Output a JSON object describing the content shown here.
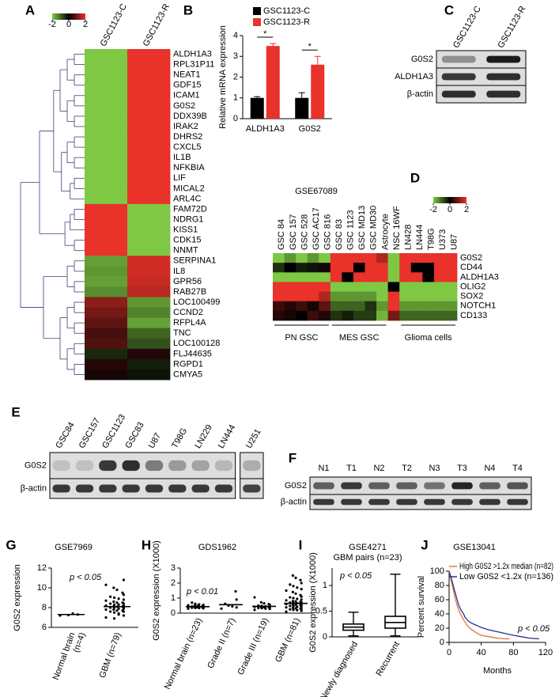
{
  "chart_data": [
    {
      "type": "heatmap",
      "panel_label": "A",
      "columns": [
        "GSC1123-C",
        "GSC1123-R"
      ],
      "rows": [
        "ALDH1A3",
        "RPL31P11",
        "NEAT1",
        "GDF15",
        "ICAM1",
        "G0S2",
        "DDX39B",
        "IRAK2",
        "DHRS2",
        "CXCL5",
        "IL1B",
        "NFKBIA",
        "LIF",
        "MICAL2",
        "ARL4C",
        "FAM72D",
        "NDRG1",
        "KISS1",
        "CDK15",
        "NNMT",
        "SERPINA1",
        "IL8",
        "GPR56",
        "RAB27B",
        "LOC100499",
        "CCND2",
        "RFPL4A",
        "TNC",
        "LOC100128",
        "FLJ44635",
        "RGPD1",
        "CMYA5"
      ],
      "values": [
        [
          -2,
          2
        ],
        [
          -2,
          2
        ],
        [
          -2,
          2
        ],
        [
          -2,
          2
        ],
        [
          -2,
          2
        ],
        [
          -2,
          2
        ],
        [
          -2,
          2
        ],
        [
          -2,
          2
        ],
        [
          -2,
          2
        ],
        [
          -2,
          2
        ],
        [
          -2,
          2
        ],
        [
          -2,
          2
        ],
        [
          -2,
          2
        ],
        [
          -2,
          2
        ],
        [
          -2,
          2
        ],
        [
          2,
          -2
        ],
        [
          2,
          -2
        ],
        [
          2,
          -2
        ],
        [
          2,
          -2
        ],
        [
          2,
          -2
        ],
        [
          -1.6,
          1.8
        ],
        [
          -1.5,
          1.8
        ],
        [
          -1.6,
          1.7
        ],
        [
          -1.4,
          1.6
        ],
        [
          1.2,
          -1.5
        ],
        [
          1.0,
          -1.3
        ],
        [
          0.8,
          -1.6
        ],
        [
          0.6,
          -1.0
        ],
        [
          0.7,
          -0.8
        ],
        [
          -0.4,
          0.3
        ],
        [
          0.3,
          -0.3
        ],
        [
          0.2,
          -0.2
        ]
      ],
      "vlim": [
        -2,
        2
      ],
      "colorbar_ticks": [
        -2,
        0,
        2
      ],
      "colors": [
        "#7ec843",
        "#000000",
        "#e8322a"
      ],
      "highlight_row": 5,
      "highlight_color": "#e8322a"
    },
    {
      "type": "bar",
      "panel_label": "B",
      "ylabel": "Relative mRNA expression",
      "categories": [
        "ALDH1A3",
        "G0S2"
      ],
      "series": [
        {
          "name": "GSC1123-C",
          "color": "#000000",
          "values": [
            1.0,
            1.0
          ],
          "errors": [
            0.06,
            0.25
          ]
        },
        {
          "name": "GSC1123-R",
          "color": "#e8322a",
          "values": [
            3.5,
            2.6
          ],
          "errors": [
            0.12,
            0.4
          ]
        }
      ],
      "significance": [
        "*",
        "*"
      ],
      "ylim": [
        0,
        4
      ],
      "yticks": [
        0,
        1,
        2,
        3,
        4
      ]
    },
    {
      "type": "blot",
      "panel_label": "C",
      "lanes": [
        "GSC1123-C",
        "GSC1123-R"
      ],
      "rows": [
        {
          "name": "G0S2",
          "intensities": [
            0.35,
            0.95
          ]
        },
        {
          "name": "ALDH1A3",
          "intensities": [
            0.8,
            0.85
          ]
        },
        {
          "name": "β-actin",
          "intensities": [
            0.85,
            0.85
          ]
        }
      ]
    },
    {
      "type": "heatmap",
      "panel_label": "D",
      "title": "GSE67089",
      "columns": [
        "GSC 84",
        "GSC 157",
        "GSC 528",
        "GSC AC17",
        "GSC 816",
        "GSC 83",
        "GSC 1123",
        "GSC MD13",
        "GSC MD30",
        "Astrocyte",
        "NSC 16WF",
        "LN428",
        "LN444",
        "T98G",
        "U373",
        "U87"
      ],
      "rows": [
        "G0S2",
        "CD44",
        "ALDH1A3",
        "OLIG2",
        "SOX2",
        "NOTCH1",
        "CD133"
      ],
      "values": [
        [
          -2,
          -1.5,
          -2,
          -1.5,
          -2,
          2,
          2,
          2,
          2,
          1.5,
          -2,
          2,
          2,
          2,
          2,
          2
        ],
        [
          -0.5,
          0,
          -0.3,
          -0.2,
          0.2,
          2,
          2,
          0,
          2,
          2,
          -2,
          2,
          0,
          0,
          2,
          2
        ],
        [
          -2,
          -2,
          -2,
          -2,
          -2,
          2,
          0,
          2,
          2,
          2,
          -2,
          2,
          2,
          0,
          2,
          2
        ],
        [
          2,
          2,
          2,
          2,
          2,
          -2,
          -2,
          -2,
          -2,
          -2,
          0,
          -2,
          -2,
          -2,
          -2,
          -2
        ],
        [
          2,
          2,
          2,
          2,
          1.5,
          -1.5,
          -1.5,
          -1.5,
          -1.5,
          -2,
          2,
          -2,
          -2,
          -2,
          -2,
          -2
        ],
        [
          0.5,
          0.3,
          0.5,
          0.2,
          0.8,
          -1,
          -1,
          -1,
          -0.5,
          -1.5,
          2,
          -1.5,
          -1.5,
          -1.5,
          -1.5,
          -1.5
        ],
        [
          0.3,
          0.2,
          0,
          0.5,
          0.3,
          -0.5,
          -0.3,
          -0.6,
          -0.6,
          -1.8,
          1,
          -1,
          -1,
          -1,
          -1,
          -1
        ]
      ],
      "vlim": [
        -2,
        2
      ],
      "colorbar_ticks": [
        -2,
        0,
        2
      ],
      "colors": [
        "#7ec843",
        "#000000",
        "#e8322a"
      ],
      "groups": [
        {
          "label": "PN GSC",
          "from": 0,
          "to": 4
        },
        {
          "label": "MES GSC",
          "from": 5,
          "to": 9
        },
        {
          "label": "Glioma cells",
          "from": 11,
          "to": 15
        }
      ]
    },
    {
      "type": "blot",
      "panel_label": "E",
      "lanes": [
        "GSC84",
        "GSC157",
        "GSC1123",
        "GSC83",
        "U87",
        "T98G",
        "LN229",
        "LN444",
        "U251"
      ],
      "gap_before": 8,
      "rows": [
        {
          "name": "G0S2",
          "intensities": [
            0.1,
            0.1,
            0.8,
            0.85,
            0.45,
            0.3,
            0.25,
            0.15,
            0.2
          ]
        },
        {
          "name": "β-actin",
          "intensities": [
            0.8,
            0.8,
            0.8,
            0.8,
            0.8,
            0.8,
            0.8,
            0.8,
            0.75
          ]
        }
      ]
    },
    {
      "type": "blot",
      "panel_label": "F",
      "lanes": [
        "N1",
        "T1",
        "N2",
        "T2",
        "N3",
        "T3",
        "N4",
        "T4"
      ],
      "rows": [
        {
          "name": "G0S2",
          "intensities": [
            0.6,
            0.8,
            0.6,
            0.6,
            0.5,
            0.9,
            0.6,
            0.65
          ]
        },
        {
          "name": "β-actin",
          "intensities": [
            0.8,
            0.8,
            0.8,
            0.8,
            0.8,
            0.8,
            0.8,
            0.8
          ]
        }
      ]
    },
    {
      "type": "strip",
      "panel_label": "G",
      "title": "GSE7969",
      "p_text": "p < 0.05",
      "ylabel": "G0S2 expression",
      "groups": [
        {
          "label": [
            "Normal brain",
            "(n=4)"
          ],
          "values": [
            7.2,
            7.3,
            7.4,
            7.25
          ],
          "mean": 7.3
        },
        {
          "label": [
            "GBM (n=79)"
          ],
          "values": [
            7.0,
            7.2,
            7.4,
            7.5,
            7.6,
            7.6,
            7.7,
            7.7,
            7.8,
            7.8,
            7.9,
            7.9,
            8.0,
            8.0,
            8.0,
            8.1,
            8.1,
            8.1,
            8.2,
            8.2,
            8.3,
            8.3,
            8.4,
            8.4,
            8.5,
            8.5,
            8.6,
            8.7,
            8.8,
            8.9,
            9.0,
            9.1,
            9.3,
            9.5,
            9.8,
            10.0,
            10.3,
            10.8,
            7.3,
            6.9
          ],
          "mean": 8.1
        }
      ],
      "ylim": [
        6,
        12
      ],
      "yticks": [
        6,
        8,
        10,
        12
      ]
    },
    {
      "type": "strip",
      "panel_label": "H",
      "title": "GDS1962",
      "p_text": "p < 0.01",
      "ylabel": "G0S2 expression (X1000)",
      "groups": [
        {
          "label": "Normal brain (n=23)",
          "values": [
            0.3,
            0.32,
            0.34,
            0.35,
            0.36,
            0.38,
            0.38,
            0.4,
            0.4,
            0.41,
            0.42,
            0.42,
            0.43,
            0.44,
            0.45,
            0.46,
            0.48,
            0.5,
            0.52,
            0.55,
            0.58,
            0.62,
            0.7
          ],
          "mean": 0.43
        },
        {
          "label": "Grade II (n=7)",
          "values": [
            0.3,
            0.38,
            0.45,
            0.5,
            0.62,
            0.9,
            1.45
          ],
          "mean": 0.56
        },
        {
          "label": "Grade III (n=19)",
          "values": [
            0.22,
            0.28,
            0.3,
            0.33,
            0.35,
            0.37,
            0.38,
            0.4,
            0.41,
            0.42,
            0.44,
            0.45,
            0.48,
            0.5,
            0.55,
            0.6,
            0.65,
            0.72,
            1.05
          ],
          "mean": 0.45
        },
        {
          "label": "GBM (n=81)",
          "values": [
            0.1,
            0.15,
            0.2,
            0.22,
            0.25,
            0.28,
            0.3,
            0.32,
            0.35,
            0.38,
            0.4,
            0.42,
            0.45,
            0.48,
            0.5,
            0.52,
            0.55,
            0.58,
            0.6,
            0.62,
            0.65,
            0.68,
            0.7,
            0.72,
            0.75,
            0.78,
            0.8,
            0.85,
            0.9,
            0.95,
            1.0,
            1.05,
            1.1,
            1.2,
            1.3,
            1.4,
            1.5,
            1.6,
            1.7,
            1.8,
            1.9,
            2.0,
            2.2,
            2.35,
            2.5
          ],
          "mean": 0.65
        }
      ],
      "ylim": [
        0,
        3
      ],
      "yticks": [
        0,
        1,
        2,
        3
      ]
    },
    {
      "type": "box",
      "panel_label": "I",
      "title": "GSE4271",
      "subtitle": "GBM pairs (n=23)",
      "p_text": "p < 0.05",
      "ylabel": "G0S2 expression (X1000)",
      "categories": [
        "Newly diagnosed",
        "Recurrent"
      ],
      "whisker_low": [
        0.02,
        0.02
      ],
      "q1": [
        0.13,
        0.17
      ],
      "median": [
        0.19,
        0.28
      ],
      "q3": [
        0.25,
        0.4
      ],
      "whisker_high": [
        0.48,
        1.22
      ],
      "ylim": [
        0,
        1.34
      ],
      "yticks": [
        0,
        0.5,
        1
      ]
    },
    {
      "type": "survival",
      "panel_label": "J",
      "title": "GSE13041",
      "p_text": "p < 0.05",
      "ylabel": "Percent survival",
      "xlabel": "Months",
      "series": [
        {
          "name": "High G0S2 >1.2x median (n=82)",
          "color": "#e0733a",
          "x": [
            0,
            2,
            4,
            6,
            8,
            10,
            12,
            15,
            18,
            20,
            24,
            28,
            32,
            36,
            40,
            45,
            50,
            55,
            60,
            70,
            75
          ],
          "y": [
            100,
            90,
            80,
            70,
            60,
            52,
            45,
            38,
            32,
            28,
            22,
            18,
            15,
            12,
            10,
            9,
            8,
            7,
            6,
            5,
            5
          ]
        },
        {
          "name": "Low G0S2 <1.2x (n=136)",
          "color": "#2b2f86",
          "x": [
            0,
            2,
            4,
            6,
            8,
            10,
            12,
            15,
            18,
            20,
            24,
            28,
            32,
            36,
            40,
            48,
            56,
            64,
            72,
            80,
            90,
            100,
            112
          ],
          "y": [
            100,
            93,
            85,
            76,
            68,
            60,
            52,
            45,
            40,
            35,
            30,
            27,
            25,
            23,
            21,
            18,
            16,
            14,
            12,
            10,
            8,
            6,
            5
          ]
        }
      ],
      "xlim": [
        0,
        120
      ],
      "xticks": [
        0,
        40,
        80,
        120
      ],
      "ylim": [
        0,
        100
      ],
      "yticks": [
        0,
        20,
        40,
        60,
        80,
        100
      ]
    }
  ]
}
